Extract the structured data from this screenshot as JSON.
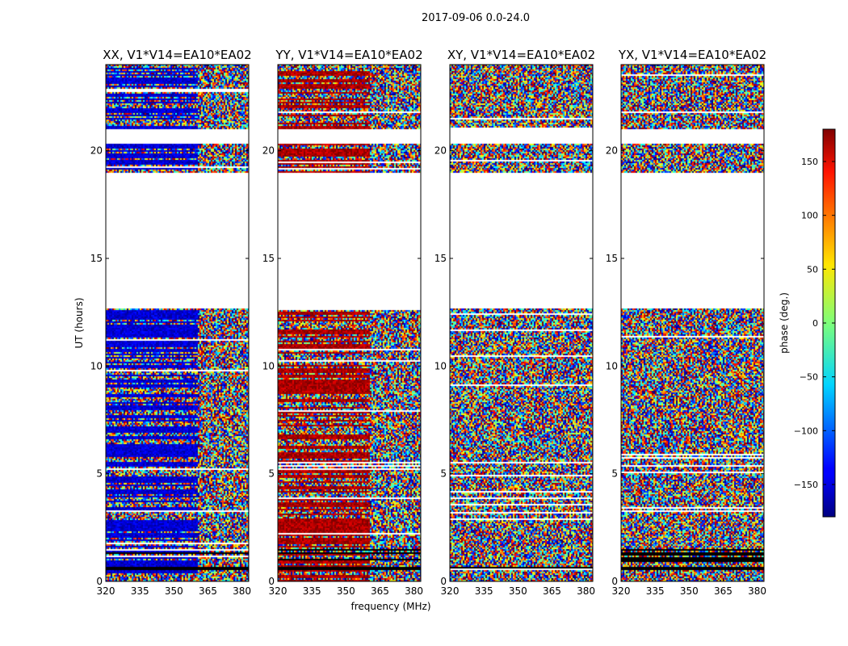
{
  "suptitle": "2017-09-06 0.0-24.0",
  "ylabel": "UT (hours)",
  "xlabel": "frequency (MHz)",
  "colorbar": {
    "label": "phase (deg.)",
    "min": -180,
    "max": 180,
    "ticks": [
      150,
      100,
      50,
      0,
      -50,
      -100,
      -150
    ],
    "tick_labels": [
      "150",
      "100",
      "50",
      "0",
      "−50",
      "−100",
      "−150"
    ]
  },
  "chart_data": [
    {
      "type": "heatmap",
      "title": "XX, V1*V14=EA10*EA02",
      "xlabel": "frequency (MHz)",
      "ylabel": "UT (hours)",
      "xlim": [
        320,
        383
      ],
      "ylim": [
        0,
        24
      ],
      "xticks": [
        320,
        335,
        350,
        365,
        380
      ],
      "yticks": [
        0,
        5,
        10,
        15,
        20
      ],
      "phase_bias_deg": -150,
      "ordered_below_freq_mhz": 360,
      "gaps_hours": [
        [
          12.7,
          19.0
        ],
        [
          20.4,
          21.0
        ]
      ]
    },
    {
      "type": "heatmap",
      "title": "YY, V1*V14=EA10*EA02",
      "xlabel": "frequency (MHz)",
      "ylabel": "UT (hours)",
      "xlim": [
        320,
        383
      ],
      "ylim": [
        0,
        24
      ],
      "xticks": [
        320,
        335,
        350,
        365,
        380
      ],
      "yticks": [
        0,
        5,
        10,
        15,
        20
      ],
      "phase_bias_deg": 165,
      "ordered_below_freq_mhz": 360,
      "gaps_hours": [
        [
          12.7,
          19.0
        ],
        [
          20.4,
          21.0
        ]
      ]
    },
    {
      "type": "heatmap",
      "title": "XY, V1*V14=EA10*EA02",
      "xlabel": "frequency (MHz)",
      "ylabel": "UT (hours)",
      "xlim": [
        320,
        383
      ],
      "ylim": [
        0,
        24
      ],
      "xticks": [
        320,
        335,
        350,
        365,
        380
      ],
      "yticks": [
        0,
        5,
        10,
        15,
        20
      ],
      "phase_bias_deg": null,
      "ordered_below_freq_mhz": null,
      "gaps_hours": [
        [
          12.7,
          19.0
        ],
        [
          20.4,
          21.0
        ]
      ]
    },
    {
      "type": "heatmap",
      "title": "YX, V1*V14=EA10*EA02",
      "xlabel": "frequency (MHz)",
      "ylabel": "UT (hours)",
      "xlim": [
        320,
        383
      ],
      "ylim": [
        0,
        24
      ],
      "xticks": [
        320,
        335,
        350,
        365,
        380
      ],
      "yticks": [
        0,
        5,
        10,
        15,
        20
      ],
      "phase_bias_deg": null,
      "ordered_below_freq_mhz": null,
      "gaps_hours": [
        [
          12.7,
          19.0
        ],
        [
          20.4,
          21.0
        ]
      ]
    }
  ]
}
